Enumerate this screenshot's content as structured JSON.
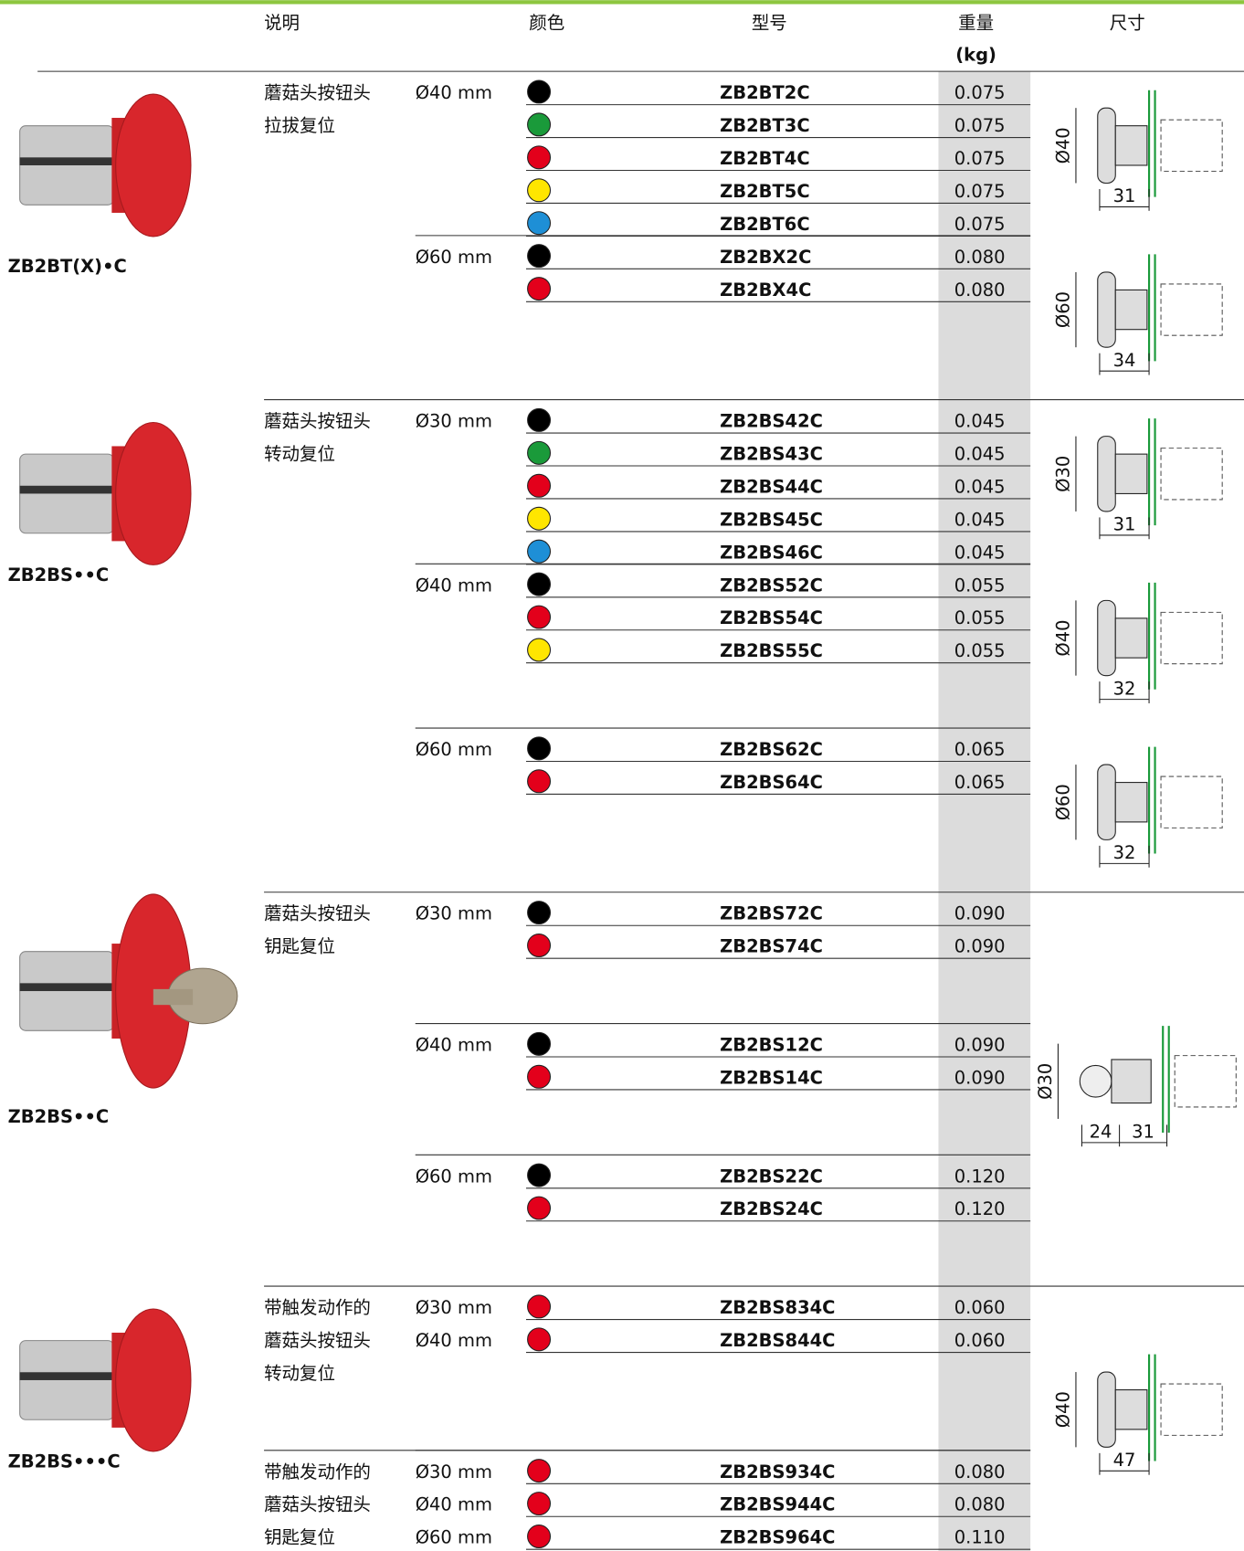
{
  "header": {
    "columns": [
      "说明",
      "颜色",
      "型号",
      "重量",
      "尺寸"
    ],
    "weight_unit": "(kg)"
  },
  "groups": [
    {
      "caption": "ZB2BT(X)•C",
      "rows": [
        {
          "description": [
            "蘑菇头按钮头",
            "拉拔复位"
          ],
          "size": "Ø40 mm",
          "color": "#000000",
          "model": "ZB2BT2C",
          "weight": "0.075"
        },
        {
          "color": "#1a9a3a",
          "model": "ZB2BT3C",
          "weight": "0.075"
        },
        {
          "color": "#e3001b",
          "model": "ZB2BT4C",
          "weight": "0.075"
        },
        {
          "color": "#ffe600",
          "model": "ZB2BT5C",
          "weight": "0.075"
        },
        {
          "color": "#1e8fd6",
          "model": "ZB2BT6C",
          "weight": "0.075"
        },
        {
          "size": "Ø60 mm",
          "color": "#000000",
          "model": "ZB2BX2C",
          "weight": "0.080"
        },
        {
          "color": "#e3001b",
          "model": "ZB2BX4C",
          "weight": "0.080"
        },
        null,
        null,
        null
      ],
      "diagrams": [
        {
          "diameter": "Ø40",
          "lengths": [
            "31"
          ]
        },
        {
          "diameter": "Ø60",
          "lengths": [
            "34"
          ]
        }
      ]
    },
    {
      "caption": "ZB2BS••C",
      "rows": [
        {
          "description": [
            "蘑菇头按钮头",
            "转动复位"
          ],
          "size": "Ø30 mm",
          "color": "#000000",
          "model": "ZB2BS42C",
          "weight": "0.045"
        },
        {
          "color": "#1a9a3a",
          "model": "ZB2BS43C",
          "weight": "0.045"
        },
        {
          "color": "#e3001b",
          "model": "ZB2BS44C",
          "weight": "0.045"
        },
        {
          "color": "#ffe600",
          "model": "ZB2BS45C",
          "weight": "0.045"
        },
        {
          "color": "#1e8fd6",
          "model": "ZB2BS46C",
          "weight": "0.045"
        },
        {
          "size": "Ø40 mm",
          "color": "#000000",
          "model": "ZB2BS52C",
          "weight": "0.055"
        },
        {
          "color": "#e3001b",
          "model": "ZB2BS54C",
          "weight": "0.055"
        },
        {
          "color": "#ffe600",
          "model": "ZB2BS55C",
          "weight": "0.055"
        },
        null,
        null,
        {
          "size": "Ø60 mm",
          "color": "#000000",
          "model": "ZB2BS62C",
          "weight": "0.065"
        },
        {
          "color": "#e3001b",
          "model": "ZB2BS64C",
          "weight": "0.065"
        },
        null,
        null,
        null
      ],
      "diagrams": [
        {
          "diameter": "Ø30",
          "lengths": [
            "31"
          ]
        },
        {
          "diameter": "Ø40",
          "lengths": [
            "32"
          ]
        },
        {
          "diameter": "Ø60",
          "lengths": [
            "32"
          ]
        }
      ]
    },
    {
      "caption": "ZB2BS••C",
      "rows": [
        {
          "description": [
            "蘑菇头按钮头",
            "钥匙复位"
          ],
          "size": "Ø30 mm",
          "color": "#000000",
          "model": "ZB2BS72C",
          "weight": "0.090"
        },
        {
          "color": "#e3001b",
          "model": "ZB2BS74C",
          "weight": "0.090"
        },
        null,
        null,
        {
          "size": "Ø40 mm",
          "color": "#000000",
          "model": "ZB2BS12C",
          "weight": "0.090"
        },
        {
          "color": "#e3001b",
          "model": "ZB2BS14C",
          "weight": "0.090"
        },
        null,
        null,
        {
          "size": "Ø60 mm",
          "color": "#000000",
          "model": "ZB2BS22C",
          "weight": "0.120"
        },
        {
          "color": "#e3001b",
          "model": "ZB2BS24C",
          "weight": "0.120"
        },
        null,
        null
      ],
      "diagrams": [
        {
          "diameter": "Ø30",
          "lengths": [
            "24",
            "31"
          ]
        }
      ]
    },
    {
      "caption": "ZB2BS•••C",
      "rows": [
        {
          "description": [
            "带触发动作的",
            "蘑菇头按钮头",
            "转动复位"
          ],
          "size": "Ø30 mm",
          "color": "#e3001b",
          "model": "ZB2BS834C",
          "weight": "0.060"
        },
        {
          "size": "Ø40 mm",
          "color": "#e3001b",
          "model": "ZB2BS844C",
          "weight": "0.060"
        },
        null,
        null,
        null,
        {
          "description": [
            "带触发动作的",
            "蘑菇头按钮头",
            "钥匙复位"
          ],
          "size": "Ø30 mm",
          "color": "#e3001b",
          "model": "ZB2BS934C",
          "weight": "0.080"
        },
        {
          "size": "Ø40 mm",
          "color": "#e3001b",
          "model": "ZB2BS944C",
          "weight": "0.080"
        },
        {
          "size": "Ø60 mm",
          "color": "#e3001b",
          "model": "ZB2BS964C",
          "weight": "0.110"
        }
      ],
      "diagrams": [
        {
          "diameter": "Ø40",
          "lengths": [
            "47"
          ]
        }
      ]
    }
  ]
}
